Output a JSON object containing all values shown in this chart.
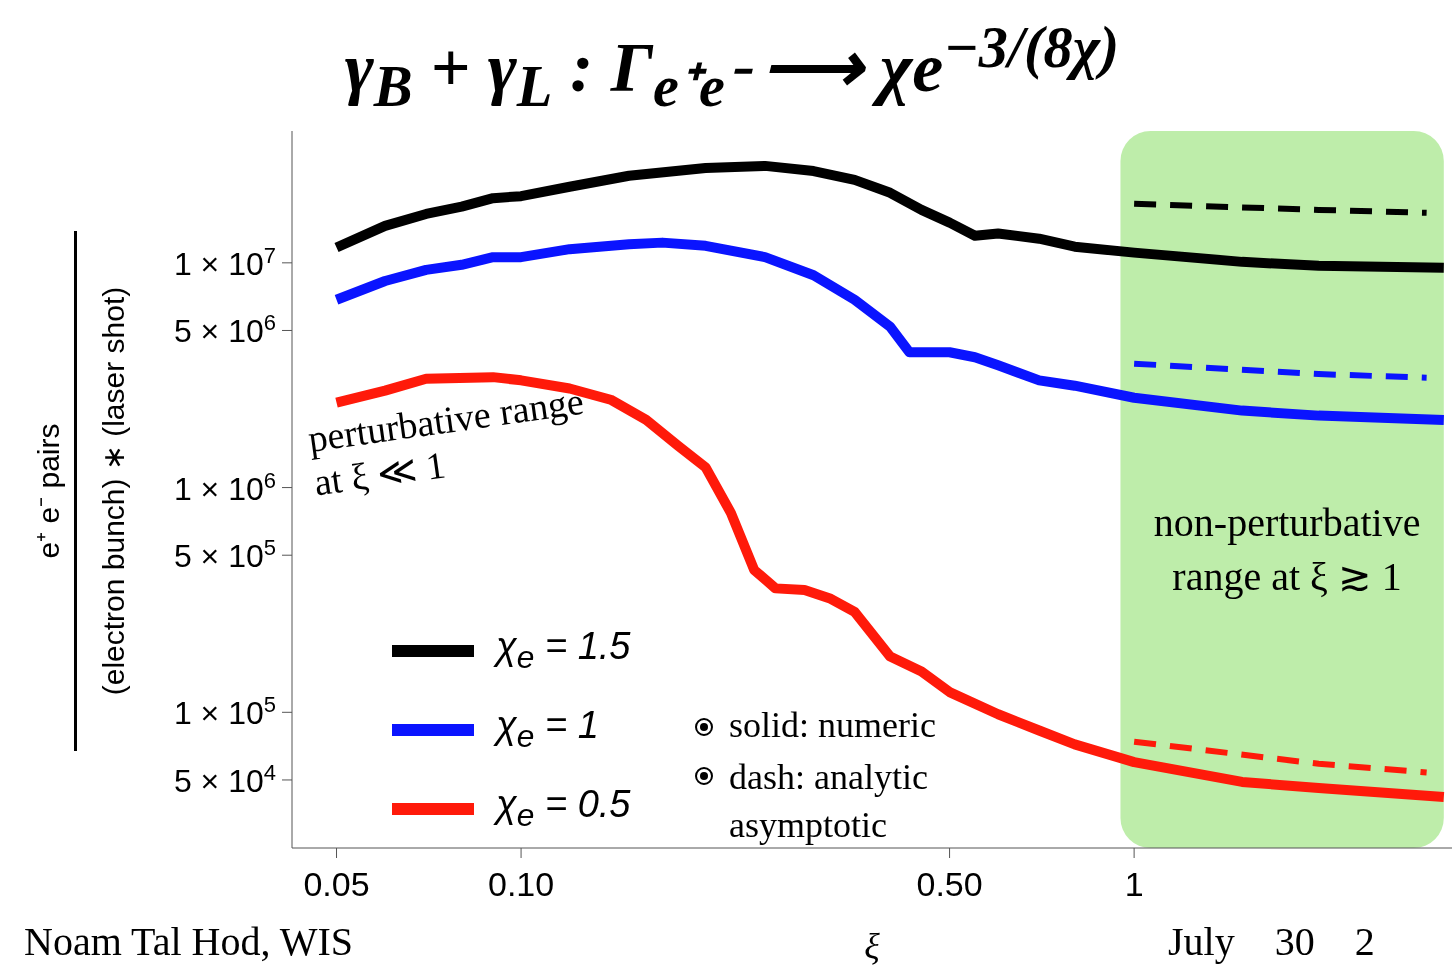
{
  "chart_data": {
    "type": "line",
    "title": "γ$_{B}$ + γ$_{L}$ :  Γ$_{e⁺e⁻}$ ⟶ χe$^{−3/(8χ)}$",
    "xlabel": "ξ",
    "ylabel": "e⁺ e⁻ pairs",
    "log": "xy",
    "xlim": [
      0.0423,
      3.3
    ],
    "ylim": [
      24900,
      38600000
    ],
    "xticks": [
      0.05,
      {
        "value": 0.1,
        "label": "0.10"
      },
      {
        "value": 0.5,
        "label": "0.50"
      },
      1
    ],
    "yticks": [
      {
        "value": 50000,
        "label": "5 × 10$^{4}$"
      },
      {
        "value": 100000,
        "label": "1 × 10$^{5}$"
      },
      {
        "value": 500000,
        "label": "5 × 10$^{5}$"
      },
      {
        "value": 1000000,
        "label": "1 × 10$^{6}$"
      },
      {
        "value": 5000000,
        "label": "5 × 10$^{6}$"
      },
      {
        "value": 10000000,
        "label": "1 × 10$^{7}$"
      }
    ],
    "legend": "bottom left",
    "marker": "none",
    "series": [
      {
        "name": "χ$_{e}$ = 1.5",
        "color": "#000000",
        "line_style": "solid",
        "x": [
          0.05,
          0.06,
          0.07,
          0.08,
          0.09,
          0.1,
          0.12,
          0.15,
          0.2,
          0.25,
          0.3,
          0.35,
          0.4,
          0.45,
          0.5,
          0.55,
          0.6,
          0.7,
          0.8,
          1,
          1.5,
          2,
          3.2
        ],
        "values": [
          11700000,
          14600000,
          16500000,
          17800000,
          19400000,
          19800000,
          21800000,
          24400000,
          26400000,
          27000000,
          25600000,
          23400000,
          20500000,
          17200000,
          15100000,
          13200000,
          13500000,
          12800000,
          11800000,
          11100000,
          10100000,
          9700000,
          9500000
        ]
      },
      {
        "name": "χ$_{e}$ = 1",
        "color": "#0a14ff",
        "line_style": "solid",
        "x": [
          0.05,
          0.06,
          0.07,
          0.08,
          0.09,
          0.1,
          0.12,
          0.15,
          0.17,
          0.2,
          0.25,
          0.3,
          0.35,
          0.4,
          0.43,
          0.5,
          0.55,
          0.6,
          0.7,
          0.8,
          1,
          1.5,
          2,
          3.2
        ],
        "values": [
          6850000,
          8300000,
          9300000,
          9800000,
          10600000,
          10600000,
          11500000,
          12100000,
          12300000,
          11900000,
          10600000,
          8800000,
          6850000,
          5200000,
          4000000,
          4000000,
          3800000,
          3500000,
          3000000,
          2840000,
          2510000,
          2200000,
          2090000,
          2000000
        ]
      },
      {
        "name": "χ$_{e}$ = 0.5",
        "color": "#ff1a0a",
        "line_style": "solid",
        "x": [
          0.05,
          0.06,
          0.07,
          0.09,
          0.1,
          0.12,
          0.14,
          0.16,
          0.18,
          0.2,
          0.22,
          0.24,
          0.26,
          0.29,
          0.32,
          0.35,
          0.4,
          0.45,
          0.5,
          0.6,
          0.7,
          0.8,
          1,
          1.5,
          2,
          3.2
        ],
        "values": [
          2390000,
          2700000,
          3050000,
          3100000,
          3000000,
          2760000,
          2460000,
          2000000,
          1540000,
          1230000,
          770000,
          430000,
          356000,
          350000,
          320000,
          280000,
          177000,
          152000,
          123000,
          98000,
          83000,
          72000,
          60000,
          49000,
          46000,
          42000
        ]
      },
      {
        "color": "#000000",
        "line_style": "dashed",
        "x": [
          1,
          2,
          3
        ],
        "values": [
          18300000,
          17200000,
          16700000
        ]
      },
      {
        "color": "#0a14ff",
        "line_style": "dashed",
        "x": [
          1,
          2,
          3
        ],
        "values": [
          3560000,
          3200000,
          3080000
        ]
      },
      {
        "color": "#ff1a0a",
        "line_style": "dashed",
        "x": [
          1,
          2,
          3
        ],
        "values": [
          74000,
          59000,
          54000
        ]
      }
    ],
    "bands": [
      {
        "axis": "x",
        "from": 0.95,
        "to": 3.2,
        "label": "non-perturbative range at ξ ≳ 1",
        "color": "#9be37c"
      }
    ],
    "annotations": [
      "perturbative range at ξ ≪ 1",
      "solid: numeric",
      "dash: analytic asymptotic",
      "Noam Tal Hod, WIS",
      "July    30    2",
      "(electron bunch) ∗ (laser shot)"
    ]
  }
}
